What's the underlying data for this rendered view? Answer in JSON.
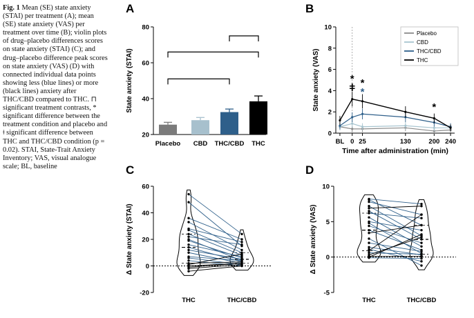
{
  "caption": {
    "fig_label": "Fig. 1",
    "text": "Mean (SE) state anxiety (STAI) per treatment (A); mean (SE) state anxiety (VAS) per treatment over time (B); violin plots of drug–placebo differences scores on state anxiety (STAI) (C); and drug–placebo difference peak scores on state anxiety (VAS) (D) with connected individual data points showing less (blue lines) or more (black lines) anxiety after THC/CBD compared to THC. ⊓ significant treatment contrasts, * significant difference between the treatment condition and placebo and ǂ significant difference between THC and THC/CBD condition (p = 0.02). STAI, State-Trait Anxiety Inventory; VAS, visual analogue scale; BL, baseline"
  },
  "chart_data": [
    {
      "panel": "A",
      "type": "bar",
      "categories": [
        "Placebo",
        "CBD",
        "THC/CBD",
        "THC"
      ],
      "values": [
        25.5,
        28,
        32.5,
        38.5
      ],
      "errors": [
        1.3,
        1.5,
        1.7,
        3
      ],
      "colors": [
        "#7b7b7b",
        "#a7c0cd",
        "#2e5f8a",
        "#000000"
      ],
      "ylabel": "State anxiety (STAI)",
      "ylim": [
        20,
        80
      ],
      "yticks": [
        "20",
        "40",
        "60",
        "80"
      ],
      "brackets": [
        [
          "Placebo",
          "THC"
        ],
        [
          "Placebo",
          "THC/CBD"
        ],
        [
          "THC/CBD",
          "THC"
        ]
      ]
    },
    {
      "panel": "B",
      "type": "line",
      "x": [
        "BL",
        "0",
        "25",
        "130",
        "200",
        "240"
      ],
      "x_numeric": [
        -30,
        0,
        25,
        130,
        200,
        240
      ],
      "xlabel": "Time after administration (min)",
      "ylabel": "State anxiety (VAS)",
      "ylim": [
        0,
        10
      ],
      "yticks": [
        "0",
        "2",
        "4",
        "6",
        "8",
        "10"
      ],
      "xlim": [
        -40,
        250
      ],
      "series": [
        {
          "name": "Placebo",
          "color": "#8a8a8a",
          "values": [
            0.6,
            0.4,
            0.4,
            0.5,
            0.2,
            0.3
          ]
        },
        {
          "name": "CBD",
          "color": "#a7c4cf",
          "values": [
            0.6,
            0.9,
            0.6,
            0.7,
            0.5,
            0.5
          ]
        },
        {
          "name": "THC/CBD",
          "color": "#2e5f8a",
          "values": [
            0.7,
            1.5,
            1.8,
            1.5,
            1.0,
            0.6
          ]
        },
        {
          "name": "THC",
          "color": "#000000",
          "values": [
            1.2,
            3.2,
            3.0,
            2.0,
            1.4,
            0.5
          ]
        }
      ],
      "annotations": [
        {
          "x": 0,
          "text": "ǂ",
          "color": "#000000"
        },
        {
          "x": 0,
          "text": "*",
          "color": "#000000"
        },
        {
          "x": 25,
          "text": "*",
          "color": "#2e5f8a"
        },
        {
          "x": 25,
          "text": "*",
          "color": "#000000"
        },
        {
          "x": 200,
          "text": "*",
          "color": "#000000"
        }
      ]
    },
    {
      "panel": "C",
      "type": "scatter",
      "categories": [
        "THC",
        "THC/CBD"
      ],
      "ylabel": "Δ State anxiety (STAI)",
      "ylim": [
        -20,
        60
      ],
      "yticks": [
        "-20",
        "0",
        "20",
        "40",
        "60"
      ],
      "pairs": [
        [
          54,
          24
        ],
        [
          48,
          15
        ],
        [
          36,
          20
        ],
        [
          33,
          12
        ],
        [
          28,
          18
        ],
        [
          27,
          10
        ],
        [
          24,
          8
        ],
        [
          22,
          16
        ],
        [
          20,
          4
        ],
        [
          19,
          6
        ],
        [
          16,
          7
        ],
        [
          14,
          3
        ],
        [
          12,
          5
        ],
        [
          10,
          2
        ],
        [
          7,
          4
        ],
        [
          6,
          1
        ],
        [
          4,
          0
        ],
        [
          2,
          3
        ],
        [
          0,
          2
        ],
        [
          -2,
          1
        ],
        [
          -4,
          0
        ],
        [
          1,
          9
        ],
        [
          -1,
          2
        ]
      ]
    },
    {
      "panel": "D",
      "type": "scatter",
      "categories": [
        "THC",
        "THC/CBD"
      ],
      "ylabel": "Δ State anxiety (VAS)",
      "ylim": [
        -5,
        10
      ],
      "yticks": [
        "-5",
        "0",
        "5",
        "10"
      ],
      "pairs": [
        [
          8.2,
          7.5
        ],
        [
          8.1,
          4.5
        ],
        [
          7.8,
          6
        ],
        [
          7.2,
          3
        ],
        [
          6.9,
          7.2
        ],
        [
          6.5,
          2.5
        ],
        [
          6.2,
          5.5
        ],
        [
          5.6,
          1.5
        ],
        [
          5,
          3.8
        ],
        [
          4.8,
          0.5
        ],
        [
          4.4,
          2
        ],
        [
          3.8,
          1
        ],
        [
          3.4,
          4.5
        ],
        [
          2.6,
          -1.2
        ],
        [
          2,
          0.8
        ],
        [
          1.4,
          0.3
        ],
        [
          1.1,
          -0.6
        ],
        [
          0.9,
          6
        ],
        [
          0.6,
          0.4
        ],
        [
          0.3,
          2.8
        ],
        [
          0.1,
          0.1
        ],
        [
          -0.1,
          -0.2
        ],
        [
          0,
          3.2
        ]
      ]
    }
  ]
}
